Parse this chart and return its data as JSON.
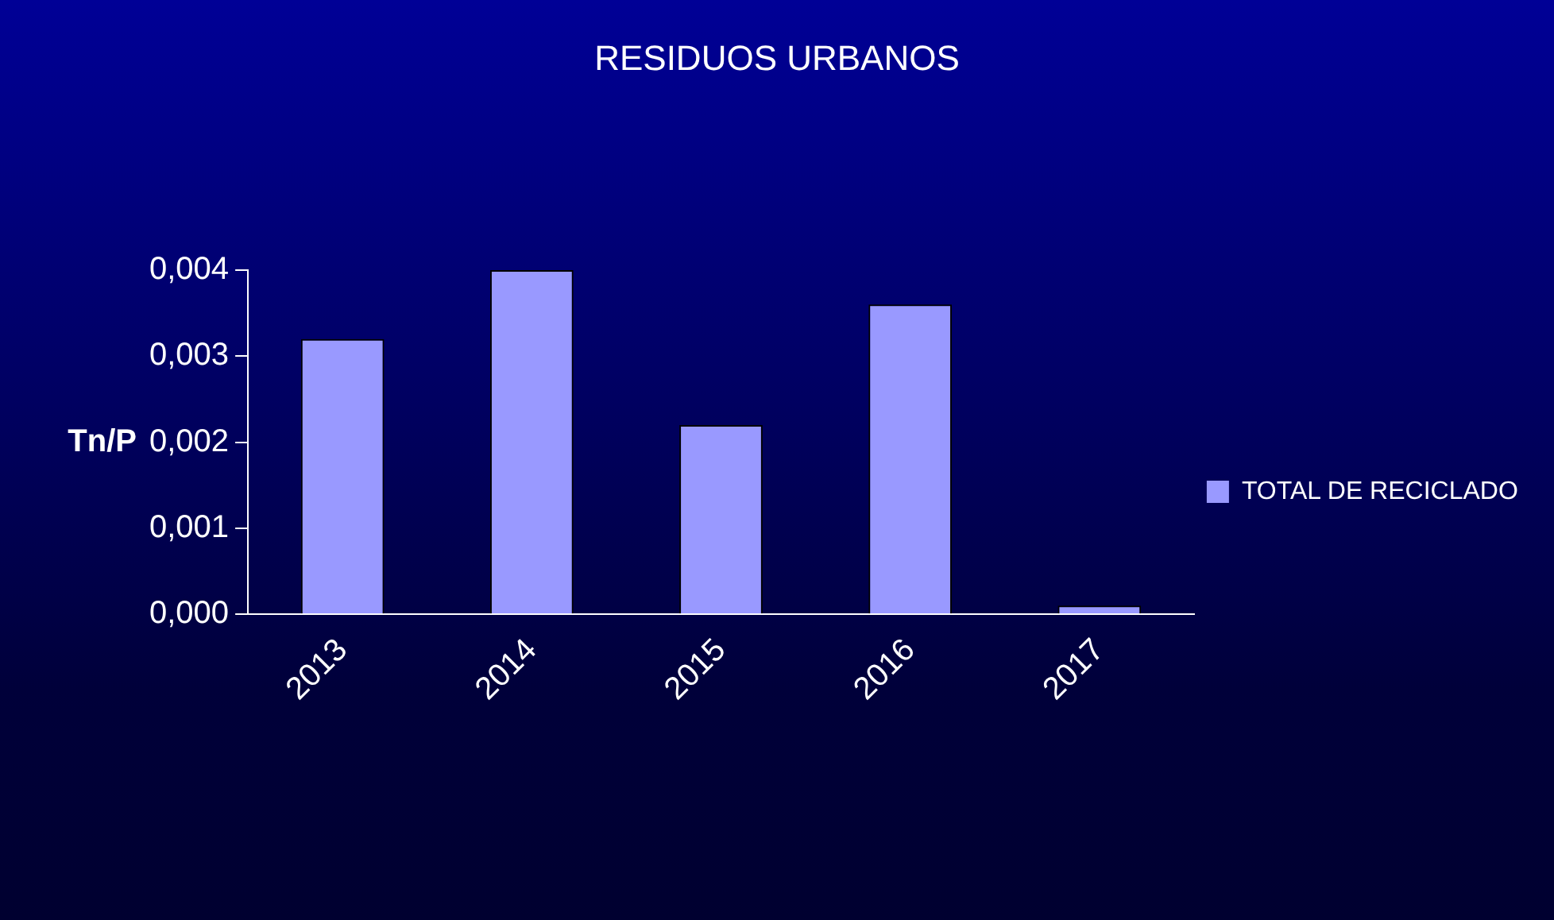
{
  "chart_data": {
    "type": "bar",
    "title": "RESIDUOS URBANOS",
    "ylabel": "Tn/P",
    "categories": [
      "2013",
      "2014",
      "2015",
      "2016",
      "2017"
    ],
    "series": [
      {
        "name": "TOTAL DE RECICLADO",
        "color": "#9999ff",
        "values": [
          0.0032,
          0.004,
          0.0022,
          0.0036,
          0.0001
        ]
      }
    ],
    "ylim": [
      0,
      0.004
    ],
    "yticks": [
      {
        "value": 0,
        "label": "0,000"
      },
      {
        "value": 0.001,
        "label": "0,001"
      },
      {
        "value": 0.002,
        "label": "0,002"
      },
      {
        "value": 0.003,
        "label": "0,003"
      },
      {
        "value": 0.004,
        "label": "0,004"
      }
    ],
    "grid": false,
    "legend": "right"
  }
}
